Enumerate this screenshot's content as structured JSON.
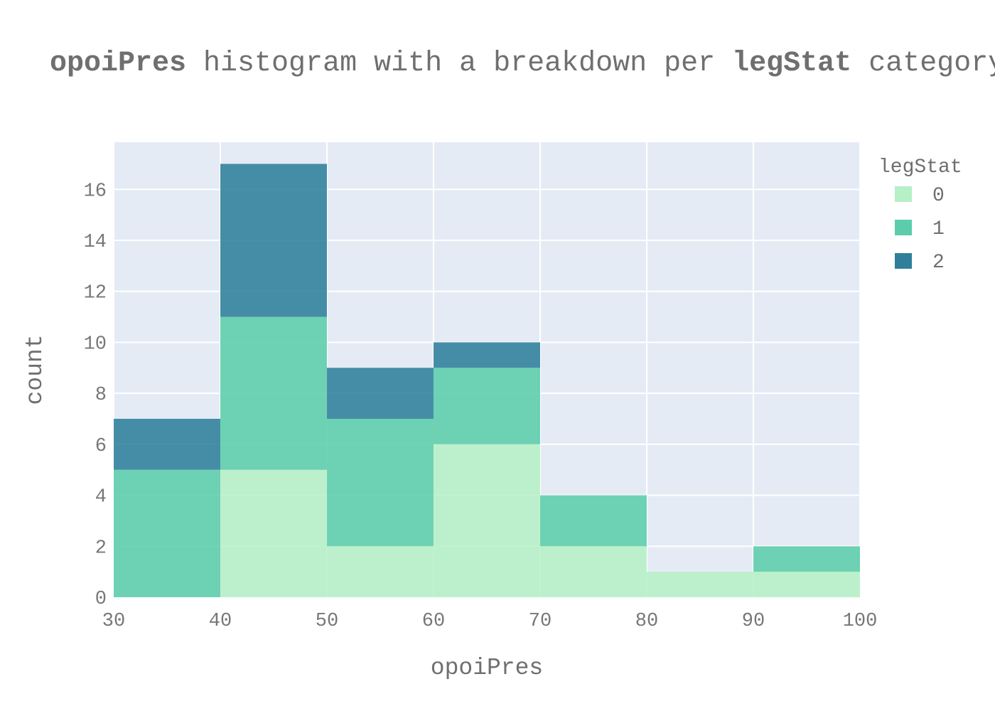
{
  "title": {
    "part1": "opoiPres",
    "part2": " histogram with a breakdown per ",
    "part3": "legStat",
    "part4": " category"
  },
  "colors": {
    "plot_bg": "#e5ebf5",
    "grid": "#ffffff",
    "series": [
      "#b6f0c6",
      "#5ccdaa",
      "#2f7f9b"
    ]
  },
  "chart_data": {
    "type": "bar",
    "stacked": true,
    "bins": [
      [
        30,
        40
      ],
      [
        40,
        50
      ],
      [
        50,
        60
      ],
      [
        60,
        70
      ],
      [
        70,
        80
      ],
      [
        80,
        90
      ],
      [
        90,
        100
      ]
    ],
    "series": [
      {
        "name": "0",
        "values": [
          0,
          5,
          2,
          6,
          2,
          1,
          1
        ]
      },
      {
        "name": "1",
        "values": [
          5,
          6,
          5,
          3,
          2,
          0,
          1
        ]
      },
      {
        "name": "2",
        "values": [
          2,
          6,
          2,
          1,
          0,
          0,
          0
        ]
      }
    ],
    "xlabel": "opoiPres",
    "ylabel": "count",
    "xlim": [
      30,
      100
    ],
    "ylim": [
      0,
      17.85
    ],
    "xticks": [
      30,
      40,
      50,
      60,
      70,
      80,
      90,
      100
    ],
    "yticks": [
      0,
      2,
      4,
      6,
      8,
      10,
      12,
      14,
      16
    ],
    "legend_title": "legStat",
    "legend_position": "top-right",
    "grid": true
  }
}
